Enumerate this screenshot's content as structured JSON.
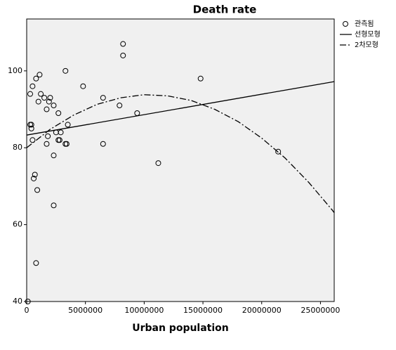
{
  "chart_data": {
    "type": "scatter",
    "title": "Death rate",
    "x_label": "Urban population",
    "xlim": [
      0,
      26170000
    ],
    "ylim": [
      40,
      113.5
    ],
    "xticks": [
      0,
      5000000,
      10000000,
      15000000,
      20000000,
      25000000
    ],
    "yticks": [
      40,
      60,
      80,
      100
    ],
    "background": "#f0f0f0",
    "legend_position": "right",
    "series": [
      {
        "name": "관측됨",
        "mark": "circle",
        "color": "#000000",
        "x": [
          300000,
          300000,
          400000,
          400000,
          500000,
          500000,
          600000,
          700000,
          800000,
          900000,
          800000,
          1000000,
          1100000,
          1200000,
          1500000,
          1700000,
          1800000,
          1700000,
          1900000,
          2000000,
          2300000,
          2300000,
          2300000,
          2500000,
          2700000,
          2700000,
          2800000,
          2900000,
          3300000,
          3300000,
          3400000,
          3500000,
          4800000,
          6500000,
          6500000,
          7900000,
          8200000,
          8200000,
          9400000,
          11200000,
          14800000,
          21400000,
          100000
        ],
        "values": [
          94,
          86,
          86,
          85,
          82,
          96,
          72,
          73,
          98,
          69,
          50,
          92,
          99,
          94,
          93,
          90,
          83,
          81,
          92,
          93,
          91,
          78,
          65,
          84,
          89,
          82,
          82,
          84,
          100,
          81,
          81,
          86,
          96,
          93,
          81,
          91,
          107,
          104,
          89,
          76,
          98,
          79,
          40
        ]
      },
      {
        "name": "선형모형",
        "mark": "line",
        "dash": "solid",
        "color": "#000000",
        "x": [
          0,
          26170000
        ],
        "values": [
          83.3,
          97.2
        ]
      },
      {
        "name": "2차모형",
        "mark": "line",
        "dash": "dashdot",
        "color": "#000000",
        "x": [
          0,
          2000000,
          4000000,
          6000000,
          8000000,
          10000000,
          12000000,
          14000000,
          16000000,
          18000000,
          20000000,
          22000000,
          24000000,
          26000000,
          26170000
        ],
        "values": [
          80.0,
          84.8,
          88.5,
          91.3,
          93.0,
          93.8,
          93.5,
          92.3,
          90.0,
          86.8,
          82.5,
          77.3,
          71.0,
          63.8,
          63.1
        ]
      }
    ]
  }
}
